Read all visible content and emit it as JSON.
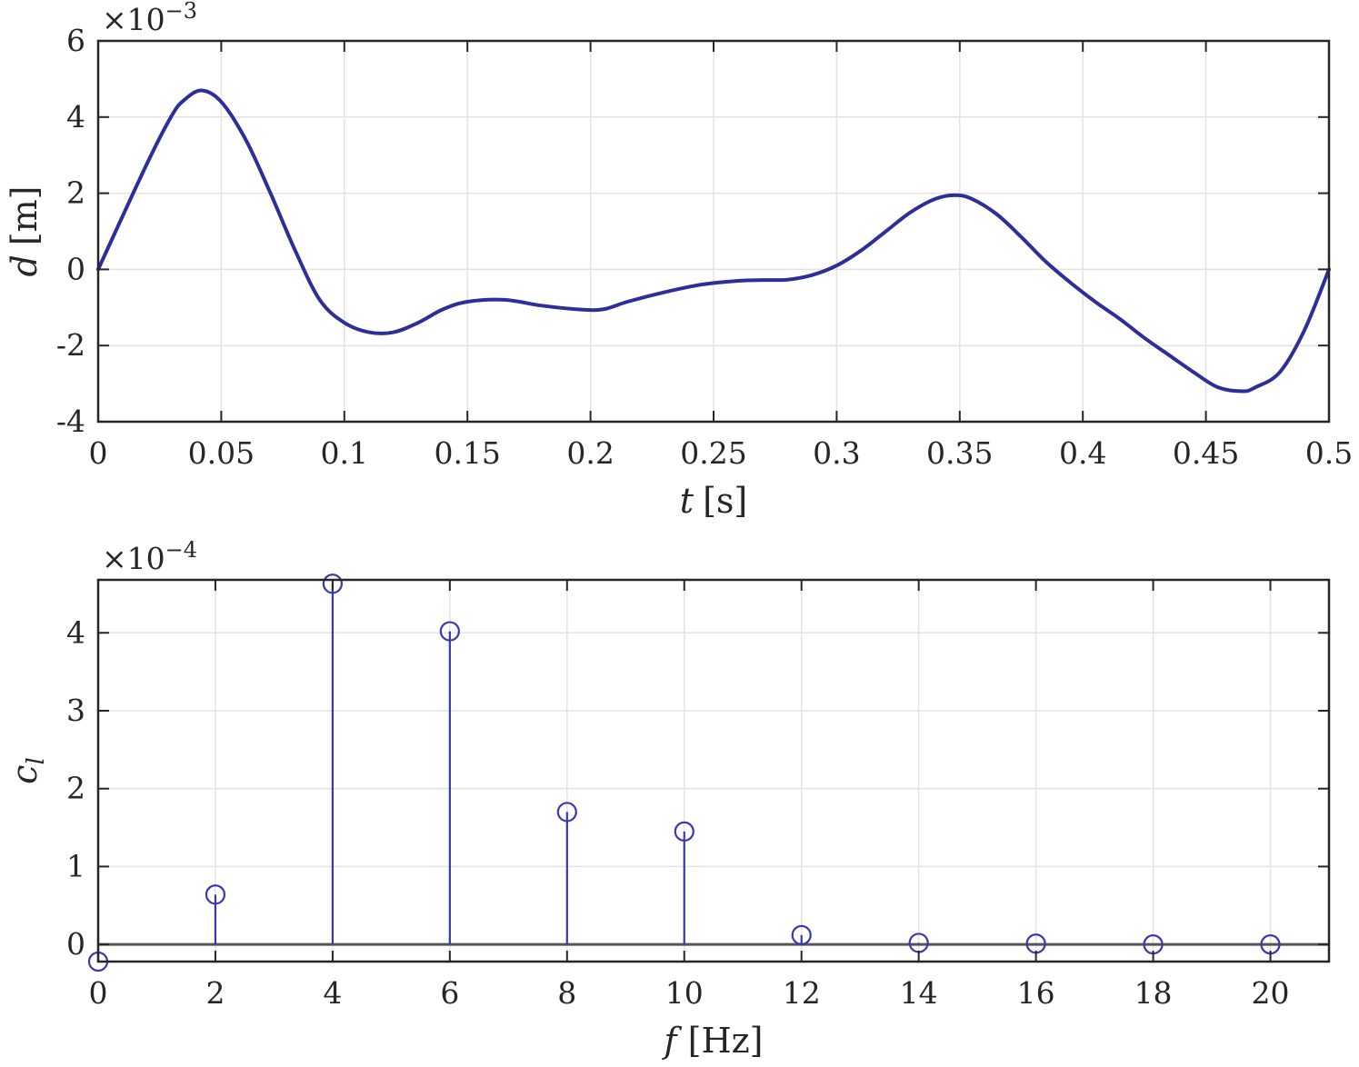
{
  "chart_data": [
    {
      "type": "line",
      "xlabel_var": "t",
      "xlabel_unit": "[s]",
      "ylabel_var": "d",
      "ylabel_unit": "[m]",
      "exponent_base": "×10",
      "exponent_power": "−3",
      "xlim": [
        0,
        0.5
      ],
      "ylim": [
        -4,
        6
      ],
      "xticks": [
        0,
        0.05,
        0.1,
        0.15,
        0.2,
        0.25,
        0.3,
        0.35,
        0.4,
        0.45,
        0.5
      ],
      "xtick_labels": [
        "0",
        "0.05",
        "0.1",
        "0.15",
        "0.2",
        "0.25",
        "0.3",
        "0.35",
        "0.4",
        "0.45",
        "0.5"
      ],
      "yticks": [
        -4,
        -2,
        0,
        2,
        4,
        6
      ],
      "ytick_labels": [
        "-4",
        "-2",
        "0",
        "2",
        "4",
        "6"
      ],
      "grid": true,
      "color": "#2e2e9a",
      "series": [
        {
          "x": [
            0,
            0.02,
            0.03,
            0.035,
            0.042,
            0.05,
            0.06,
            0.07,
            0.08,
            0.09,
            0.1,
            0.11,
            0.12,
            0.13,
            0.14,
            0.15,
            0.165,
            0.18,
            0.195,
            0.205,
            0.215,
            0.23,
            0.245,
            0.26,
            0.27,
            0.28,
            0.29,
            0.3,
            0.31,
            0.32,
            0.33,
            0.34,
            0.348,
            0.355,
            0.365,
            0.375,
            0.385,
            0.395,
            0.405,
            0.415,
            0.425,
            0.435,
            0.445,
            0.455,
            0.465,
            0.47,
            0.48,
            0.49,
            0.5
          ],
          "y": [
            0,
            2.8,
            4.05,
            4.45,
            4.7,
            4.4,
            3.4,
            2.0,
            0.5,
            -0.8,
            -1.4,
            -1.65,
            -1.65,
            -1.4,
            -1.05,
            -0.85,
            -0.8,
            -0.95,
            -1.05,
            -1.05,
            -0.85,
            -0.6,
            -0.4,
            -0.3,
            -0.28,
            -0.27,
            -0.15,
            0.1,
            0.5,
            1.0,
            1.5,
            1.85,
            1.95,
            1.85,
            1.45,
            0.85,
            0.2,
            -0.35,
            -0.85,
            -1.3,
            -1.8,
            -2.25,
            -2.7,
            -3.1,
            -3.2,
            -3.1,
            -2.7,
            -1.6,
            0
          ]
        }
      ]
    },
    {
      "type": "stem",
      "xlabel_var": "f",
      "xlabel_unit": "[Hz]",
      "ylabel_var": "c",
      "ylabel_sub": "l",
      "exponent_base": "×10",
      "exponent_power": "−4",
      "xlim": [
        0,
        21
      ],
      "ylim": [
        -0.22,
        4.68
      ],
      "xticks": [
        0,
        2,
        4,
        6,
        8,
        10,
        12,
        14,
        16,
        18,
        20
      ],
      "xtick_labels": [
        "0",
        "2",
        "4",
        "6",
        "8",
        "10",
        "12",
        "14",
        "16",
        "18",
        "20"
      ],
      "yticks": [
        0,
        1,
        2,
        3,
        4
      ],
      "ytick_labels": [
        "0",
        "1",
        "2",
        "3",
        "4"
      ],
      "grid": true,
      "color": "#3838b0",
      "series": [
        {
          "x": [
            0,
            2,
            4,
            6,
            8,
            10,
            12,
            14,
            16,
            18,
            20
          ],
          "y": [
            -0.22,
            0.64,
            4.63,
            4.02,
            1.7,
            1.45,
            0.12,
            0.02,
            0.01,
            0.0,
            0.0
          ]
        }
      ]
    }
  ]
}
